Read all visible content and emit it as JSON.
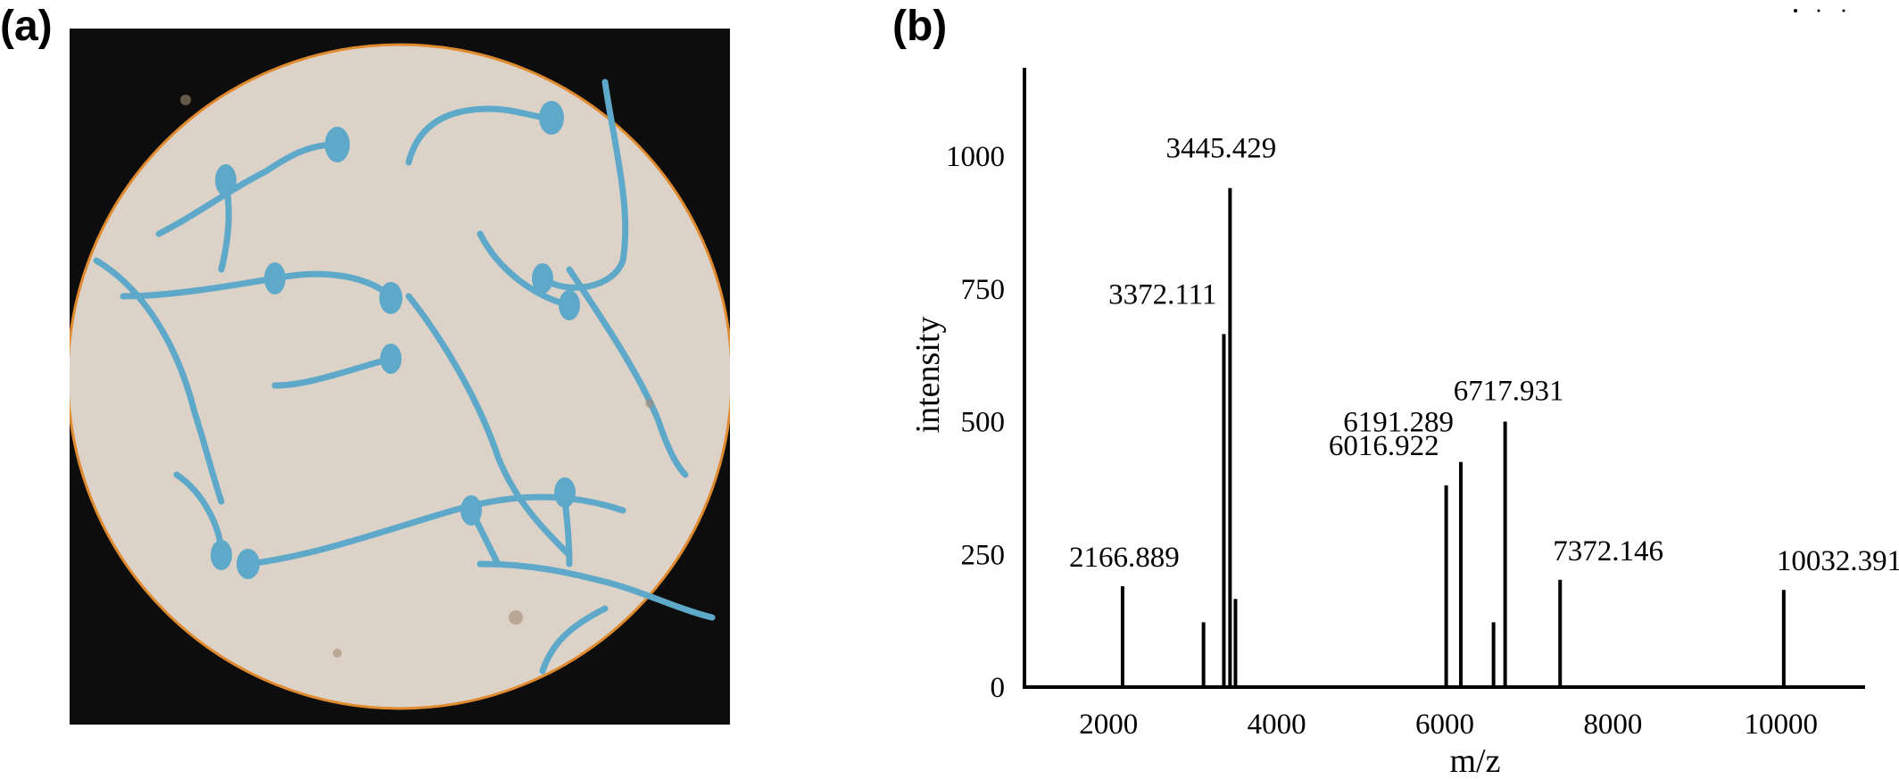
{
  "panels": {
    "a_label": "(a)",
    "b_label": "(b)"
  },
  "micrograph": {
    "background_color": "#0d0d0d",
    "field_color": "#dcd2c8",
    "rim_color": "#e08a2e",
    "stain_color": "#5ea9c9"
  },
  "chart_data": {
    "type": "bar",
    "xlabel": "m/z",
    "ylabel": "intensity",
    "xlim": [
      1000,
      11000
    ],
    "ylim": [
      0,
      1200
    ],
    "xticks": [
      2000,
      4000,
      6000,
      8000,
      10000
    ],
    "xtick_labels": [
      "2000",
      "4000",
      "6000",
      "8000",
      "10000"
    ],
    "yticks": [
      0,
      250,
      500,
      750,
      1000
    ],
    "ytick_labels": [
      "0",
      "250",
      "500",
      "750",
      "1000"
    ],
    "grid": false,
    "peaks": [
      {
        "x": 2166.889,
        "y": 190,
        "label": "2166.889"
      },
      {
        "x": 3130,
        "y": 122,
        "label": ""
      },
      {
        "x": 3372.111,
        "y": 665,
        "label": "3372.111"
      },
      {
        "x": 3445.429,
        "y": 940,
        "label": "3445.429"
      },
      {
        "x": 3510,
        "y": 166,
        "label": ""
      },
      {
        "x": 6016.922,
        "y": 380,
        "label": "6016.922"
      },
      {
        "x": 6191.289,
        "y": 424,
        "label": "6191.289"
      },
      {
        "x": 6580,
        "y": 122,
        "label": ""
      },
      {
        "x": 6717.931,
        "y": 500,
        "label": "6717.931"
      },
      {
        "x": 7372.146,
        "y": 202,
        "label": "7372.146"
      },
      {
        "x": 10032.391,
        "y": 183,
        "label": "10032.391"
      }
    ]
  }
}
